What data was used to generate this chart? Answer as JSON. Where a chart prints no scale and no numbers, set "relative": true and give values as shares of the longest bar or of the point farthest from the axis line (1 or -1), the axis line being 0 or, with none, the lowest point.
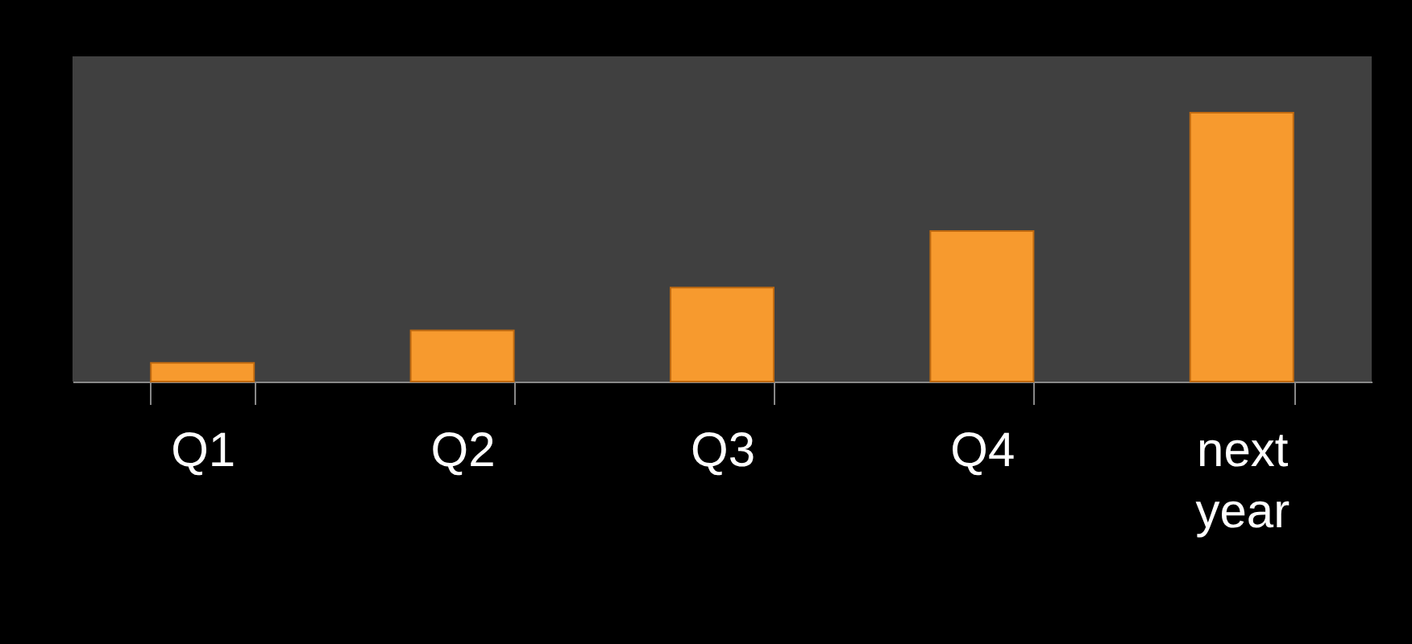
{
  "chart_data": {
    "type": "bar",
    "relative": true,
    "categories": [
      "Q1",
      "Q2",
      "Q3",
      "Q4",
      "next year"
    ],
    "values": [
      0.07,
      0.19,
      0.35,
      0.56,
      1
    ],
    "color": "#f79a2e"
  }
}
